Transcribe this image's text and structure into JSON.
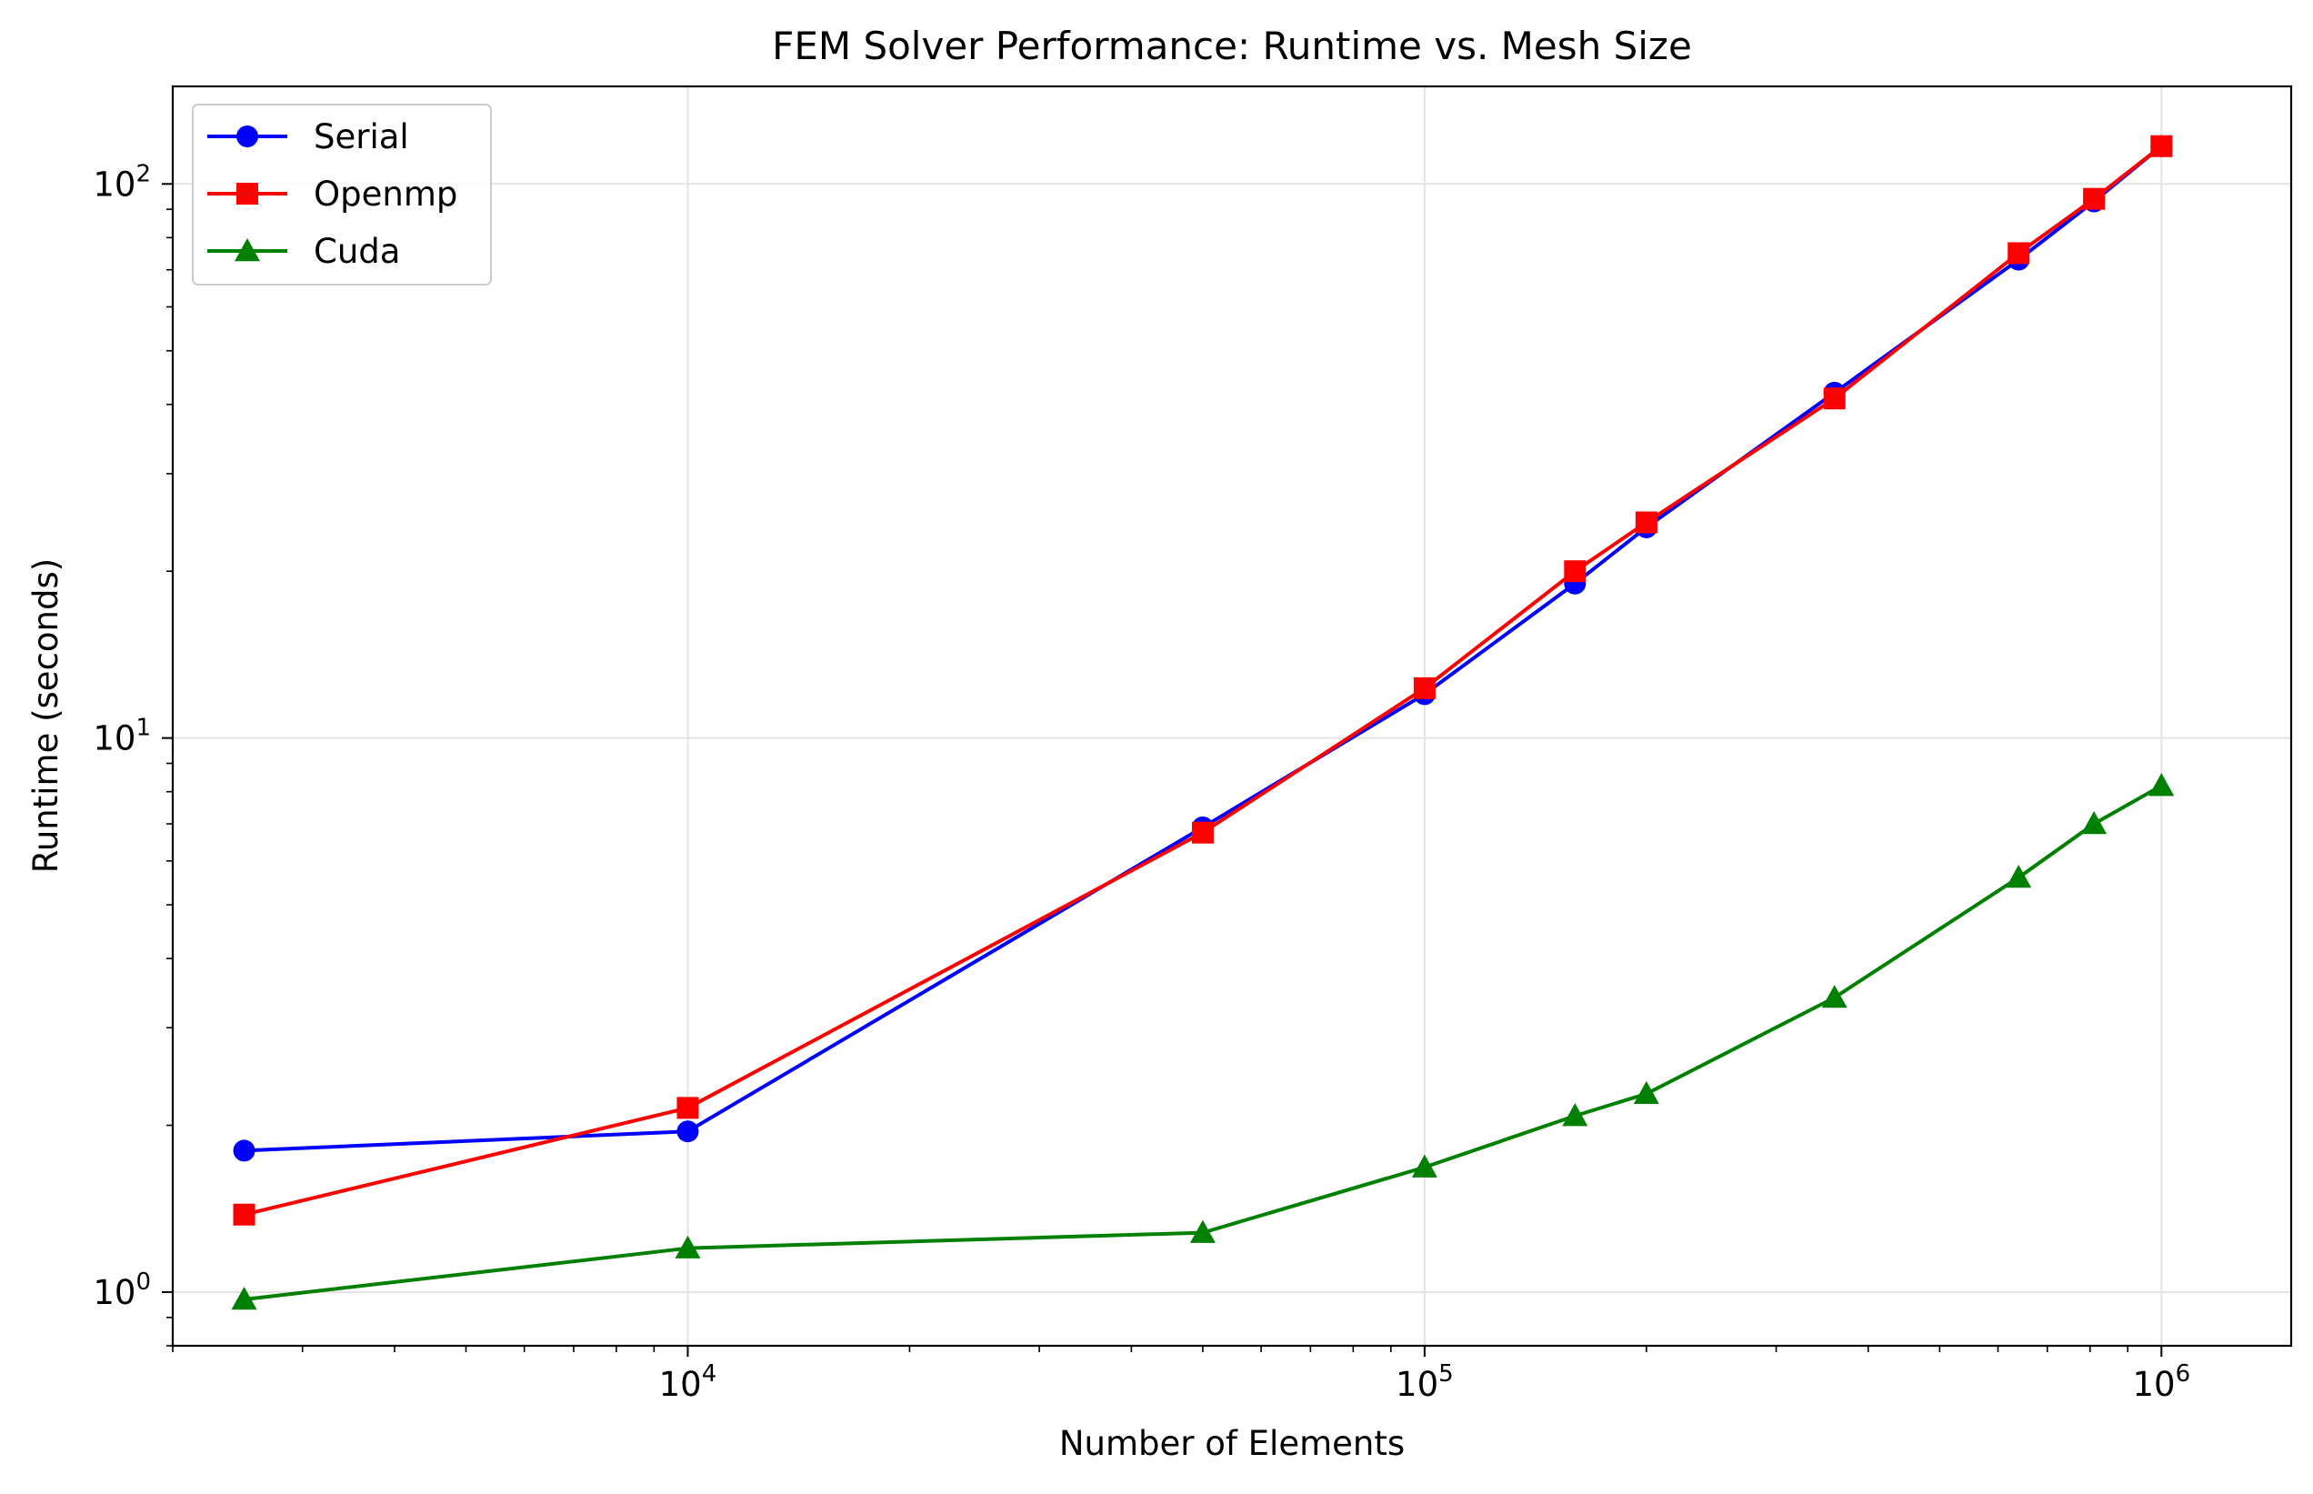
{
  "chart_data": {
    "type": "line",
    "title": "FEM Solver Performance: Runtime vs. Mesh Size",
    "xlabel": "Number of Elements",
    "ylabel": "Runtime (seconds)",
    "xscale": "log",
    "yscale": "log",
    "xlim": [
      2000,
      1500000
    ],
    "ylim": [
      0.8,
      150
    ],
    "grid": true,
    "legend_position": "upper-left",
    "x_ticks": [
      {
        "value": 10000,
        "base": "10",
        "exp": "4"
      },
      {
        "value": 100000,
        "base": "10",
        "exp": "5"
      },
      {
        "value": 1000000,
        "base": "10",
        "exp": "6"
      }
    ],
    "y_ticks": [
      {
        "value": 1,
        "base": "10",
        "exp": "0"
      },
      {
        "value": 10,
        "base": "10",
        "exp": "1"
      },
      {
        "value": 100,
        "base": "10",
        "exp": "2"
      }
    ],
    "x": [
      2500,
      10000,
      50000,
      100000,
      160000,
      200000,
      360000,
      640000,
      810000,
      1000000
    ],
    "series": [
      {
        "name": "Serial",
        "color": "#0000ff",
        "marker": "circle",
        "values": [
          1.8,
          1.95,
          6.9,
          12.0,
          19.0,
          24.0,
          42.0,
          73.0,
          93.0,
          117.0
        ]
      },
      {
        "name": "Openmp",
        "color": "#ff0000",
        "marker": "square",
        "values": [
          1.38,
          2.15,
          6.75,
          12.3,
          20.0,
          24.5,
          41.0,
          75.0,
          94.0,
          117.0
        ]
      },
      {
        "name": "Cuda",
        "color": "#008000",
        "marker": "triangle",
        "values": [
          0.97,
          1.2,
          1.28,
          1.68,
          2.08,
          2.28,
          3.4,
          5.6,
          7.0,
          8.2
        ]
      }
    ]
  }
}
